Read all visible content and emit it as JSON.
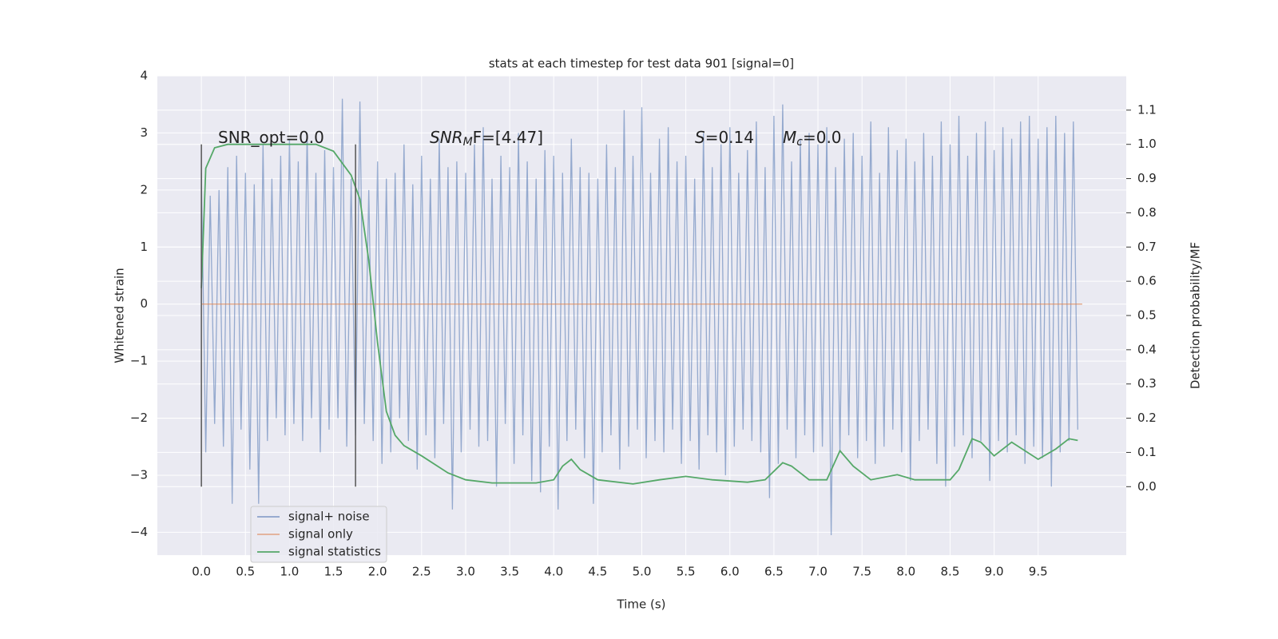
{
  "chart_data": {
    "type": "line",
    "title": "stats at each timestep for test data 901 [signal=0]",
    "xlabel": "Time (s)",
    "ylabel": "Whitened strain",
    "y2label": "Detection probability/MF",
    "xlim": [
      -0.5,
      10.5
    ],
    "ylim": [
      -4.4,
      4.0
    ],
    "y2lim": [
      -0.2,
      1.2
    ],
    "xticks": [
      {
        "value": 0,
        "label": "0.0"
      },
      0.5,
      {
        "value": 1,
        "label": "1.0"
      },
      1.5,
      {
        "value": 2,
        "label": "2.0"
      },
      2.5,
      {
        "value": 3,
        "label": "3.0"
      },
      3.5,
      {
        "value": 4,
        "label": "4.0"
      },
      4.5,
      {
        "value": 5,
        "label": "5.0"
      },
      5.5,
      {
        "value": 6,
        "label": "6.0"
      },
      6.5,
      {
        "value": 7,
        "label": "7.0"
      },
      7.5,
      {
        "value": 8,
        "label": "8.0"
      },
      8.5,
      {
        "value": 9,
        "label": "9.0"
      },
      9.5
    ],
    "yticks": [
      {
        "value": -4,
        "label": "−4"
      },
      {
        "value": -3,
        "label": "−3"
      },
      {
        "value": -2,
        "label": "−2"
      },
      {
        "value": -1,
        "label": "−1"
      },
      0,
      1,
      2,
      3,
      4
    ],
    "y2ticks": [
      {
        "value": 0,
        "label": "0.0"
      },
      0.1,
      0.2,
      0.3,
      0.4,
      0.5,
      0.6,
      0.7,
      0.8,
      0.9,
      {
        "value": 1,
        "label": "1.0"
      },
      1.1
    ],
    "grid": true,
    "legend": "lower left",
    "vlines": {
      "x": [
        0,
        1.75
      ],
      "ymin": -3.2,
      "ymax": 2.8,
      "color": "#555555"
    },
    "annotations": [
      {
        "base": "SNR_opt=0.0"
      },
      {
        "base": "SNR",
        "sub": "M",
        "rest": "F=[4.47]"
      },
      {
        "base": "S",
        "rest": "=0.14"
      },
      {
        "base": "M",
        "sub": "c",
        "rest": "=0.0"
      }
    ],
    "series": [
      {
        "name": "signal+ noise",
        "color": "#4c72b0",
        "x": [
          0,
          0.05,
          0.1,
          0.15,
          0.2,
          0.25,
          0.3,
          0.35,
          0.4,
          0.45,
          0.5,
          0.55,
          0.6,
          0.65,
          0.7,
          0.75,
          0.8,
          0.85,
          0.9,
          0.95,
          1,
          1.05,
          1.1,
          1.15,
          1.2,
          1.25,
          1.3,
          1.35,
          1.4,
          1.45,
          1.5,
          1.55,
          1.6,
          1.65,
          1.7,
          1.75,
          1.8,
          1.85,
          1.9,
          1.95,
          2,
          2.05,
          2.1,
          2.15,
          2.2,
          2.25,
          2.3,
          2.35,
          2.4,
          2.45,
          2.5,
          2.55,
          2.6,
          2.65,
          2.7,
          2.75,
          2.8,
          2.85,
          2.9,
          2.95,
          3,
          3.05,
          3.1,
          3.15,
          3.2,
          3.25,
          3.3,
          3.35,
          3.4,
          3.45,
          3.5,
          3.55,
          3.6,
          3.65,
          3.7,
          3.75,
          3.8,
          3.85,
          3.9,
          3.95,
          4,
          4.05,
          4.1,
          4.15,
          4.2,
          4.25,
          4.3,
          4.35,
          4.4,
          4.45,
          4.5,
          4.55,
          4.6,
          4.65,
          4.7,
          4.75,
          4.8,
          4.85,
          4.9,
          4.95,
          5,
          5.05,
          5.1,
          5.15,
          5.2,
          5.25,
          5.3,
          5.35,
          5.4,
          5.45,
          5.5,
          5.55,
          5.6,
          5.65,
          5.7,
          5.75,
          5.8,
          5.85,
          5.9,
          5.95,
          6,
          6.05,
          6.1,
          6.15,
          6.2,
          6.25,
          6.3,
          6.35,
          6.4,
          6.45,
          6.5,
          6.55,
          6.6,
          6.65,
          6.7,
          6.75,
          6.8,
          6.85,
          6.9,
          6.95,
          7,
          7.05,
          7.1,
          7.15,
          7.2,
          7.25,
          7.3,
          7.35,
          7.4,
          7.45,
          7.5,
          7.55,
          7.6,
          7.65,
          7.7,
          7.75,
          7.8,
          7.85,
          7.9,
          7.95,
          8,
          8.05,
          8.1,
          8.15,
          8.2,
          8.25,
          8.3,
          8.35,
          8.4,
          8.45,
          8.5,
          8.55,
          8.6,
          8.65,
          8.7,
          8.75,
          8.8,
          8.85,
          8.9,
          8.95,
          9,
          9.05,
          9.1,
          9.15,
          9.2,
          9.25,
          9.3,
          9.35,
          9.4,
          9.45,
          9.5,
          9.55,
          9.6,
          9.65,
          9.7,
          9.75,
          9.8,
          9.85,
          9.9,
          9.95
        ],
        "values": [
          2.3,
          -2.6,
          1.9,
          -2.1,
          2.0,
          -2.5,
          2.4,
          -3.5,
          2.6,
          -2.2,
          2.3,
          -2.9,
          2.1,
          -3.5,
          2.8,
          -2.4,
          2.2,
          -2.0,
          2.6,
          -2.3,
          2.9,
          -2.1,
          2.5,
          -2.4,
          3.0,
          -2.0,
          2.3,
          -2.6,
          2.7,
          -2.2,
          2.4,
          -2.0,
          3.6,
          -2.5,
          2.2,
          -2.3,
          3.55,
          -2.1,
          2.0,
          -2.4,
          2.5,
          -2.8,
          2.2,
          -2.6,
          2.3,
          -2.0,
          2.8,
          -2.4,
          2.1,
          -2.9,
          2.6,
          -2.3,
          2.2,
          -2.7,
          2.9,
          -2.1,
          2.4,
          -3.6,
          2.5,
          -2.6,
          2.3,
          -2.2,
          2.8,
          -2.5,
          3.1,
          -2.4,
          2.2,
          -3.2,
          2.6,
          -2.1,
          2.4,
          -2.8,
          3.0,
          -2.3,
          2.5,
          -3.1,
          2.2,
          -3.3,
          2.7,
          -2.5,
          2.6,
          -3.6,
          2.3,
          -2.4,
          2.9,
          -2.2,
          2.4,
          -2.7,
          2.3,
          -3.5,
          2.2,
          -2.6,
          2.8,
          -2.3,
          2.4,
          -2.9,
          3.4,
          -2.5,
          2.6,
          -2.2,
          3.45,
          -2.7,
          2.3,
          -2.4,
          2.9,
          -2.6,
          3.1,
          -2.2,
          2.5,
          -2.8,
          2.6,
          -2.4,
          2.2,
          -2.9,
          3.0,
          -2.3,
          2.4,
          -2.6,
          2.8,
          -3.0,
          3.1,
          -2.5,
          2.3,
          -2.2,
          2.7,
          -2.4,
          3.2,
          -2.6,
          2.4,
          -3.4,
          3.3,
          -2.8,
          3.5,
          -2.2,
          2.5,
          -2.7,
          2.9,
          -2.3,
          3.0,
          -2.6,
          2.8,
          -2.5,
          3.1,
          -4.05,
          2.4,
          -2.6,
          2.9,
          -2.3,
          3.0,
          -2.7,
          2.6,
          -2.4,
          3.2,
          -2.8,
          2.3,
          -2.5,
          3.1,
          -2.2,
          2.7,
          -2.6,
          2.9,
          -3.1,
          2.5,
          -2.4,
          3.0,
          -2.2,
          2.6,
          -2.8,
          3.2,
          -3.2,
          2.8,
          -2.5,
          3.3,
          -2.3,
          2.6,
          -2.7,
          3.0,
          -2.4,
          3.2,
          -3.1,
          2.7,
          -2.4,
          3.1,
          -2.6,
          2.9,
          -2.3,
          3.2,
          -2.8,
          3.3,
          -2.5,
          2.9,
          -2.7,
          3.1,
          -3.2,
          3.3,
          -2.6,
          3.0,
          -2.4,
          3.2,
          -2.2
        ]
      },
      {
        "name": "signal only",
        "color": "#dd8452",
        "x": [
          0,
          10
        ],
        "values": [
          0,
          0
        ]
      },
      {
        "name": "signal statistics",
        "color": "#55a868",
        "axis": "y2",
        "x": [
          0,
          0.05,
          0.15,
          0.3,
          0.6,
          1.0,
          1.3,
          1.5,
          1.7,
          1.8,
          1.9,
          2.0,
          2.1,
          2.2,
          2.3,
          2.5,
          2.8,
          3.0,
          3.3,
          3.8,
          4.0,
          4.1,
          4.2,
          4.3,
          4.5,
          4.9,
          5.2,
          5.5,
          5.8,
          6.2,
          6.4,
          6.6,
          6.7,
          6.9,
          7.1,
          7.25,
          7.4,
          7.6,
          7.9,
          8.1,
          8.5,
          8.6,
          8.75,
          8.85,
          9.0,
          9.2,
          9.5,
          9.7,
          9.85,
          9.95
        ],
        "values": [
          0.58,
          0.93,
          0.99,
          1.0,
          1.0,
          1.0,
          1.0,
          0.98,
          0.91,
          0.84,
          0.66,
          0.42,
          0.22,
          0.15,
          0.12,
          0.09,
          0.04,
          0.02,
          0.011,
          0.011,
          0.02,
          0.06,
          0.08,
          0.05,
          0.02,
          0.008,
          0.02,
          0.03,
          0.02,
          0.013,
          0.02,
          0.07,
          0.06,
          0.02,
          0.02,
          0.105,
          0.06,
          0.02,
          0.035,
          0.02,
          0.02,
          0.05,
          0.14,
          0.13,
          0.09,
          0.13,
          0.08,
          0.11,
          0.14,
          0.135
        ]
      }
    ]
  }
}
